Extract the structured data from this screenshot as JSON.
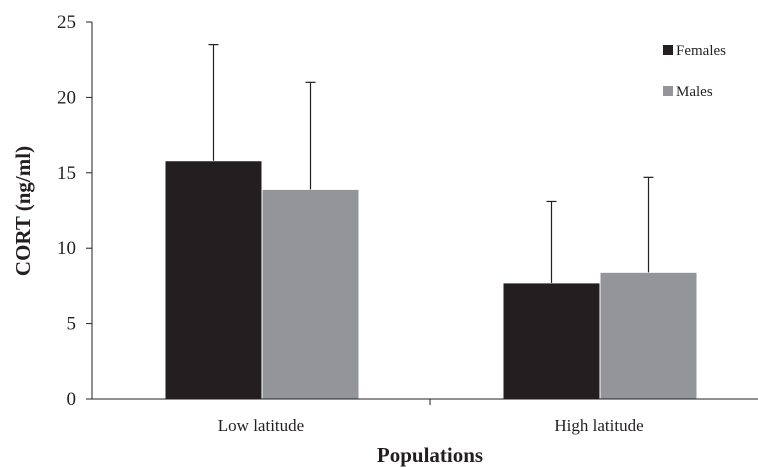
{
  "chart_data": {
    "type": "bar",
    "xlabel": "Populations",
    "ylabel": "CORT (ng/ml)",
    "categories": [
      "Low latitude",
      "High latitude"
    ],
    "ylim": [
      0,
      25
    ],
    "yticks": [
      0,
      5,
      10,
      15,
      20,
      25
    ],
    "grid": false,
    "legend_position": "top-right",
    "error_bars": "upper only",
    "series": [
      {
        "name": "Females",
        "color": "#231f20",
        "values": [
          15.8,
          7.7
        ],
        "errors": [
          7.7,
          5.4
        ]
      },
      {
        "name": "Males",
        "color": "#939598",
        "values": [
          13.9,
          8.4
        ],
        "errors": [
          7.1,
          6.3
        ]
      }
    ]
  }
}
